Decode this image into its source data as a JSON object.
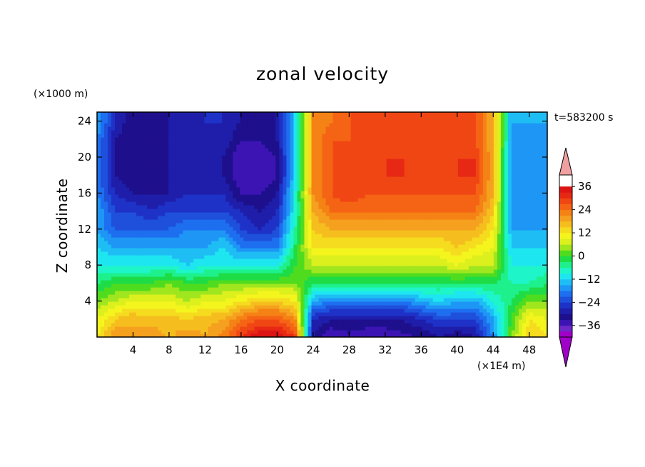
{
  "chart_data": {
    "type": "heatmap",
    "title": "zonal velocity",
    "xlabel": "X coordinate",
    "ylabel": "Z coordinate",
    "x_unit": "(×1E4 m)",
    "y_unit": "(×1000 m)",
    "time_label": "t=583200 s",
    "xlim": [
      0,
      50
    ],
    "ylim": [
      0,
      25
    ],
    "x_ticks": [
      4,
      8,
      12,
      16,
      20,
      24,
      28,
      32,
      36,
      40,
      44,
      48
    ],
    "y_ticks": [
      4,
      8,
      12,
      16,
      20,
      24
    ],
    "x_tick_labels": [
      "4",
      "8",
      "12",
      "16",
      "20",
      "24",
      "28",
      "32",
      "36",
      "40",
      "44",
      "48"
    ],
    "y_tick_labels": [
      "4",
      "8",
      "12",
      "16",
      "20",
      "24"
    ],
    "colorbar": {
      "levels": [
        -42,
        -39,
        -36,
        -33,
        -30,
        -27,
        -24,
        -21,
        -18,
        -15,
        -12,
        -9,
        -6,
        -3,
        0,
        3,
        6,
        9,
        12,
        15,
        18,
        21,
        24,
        27,
        30,
        33,
        36,
        39,
        42
      ],
      "tick_values": [
        -36,
        -24,
        -12,
        0,
        12,
        24,
        36
      ],
      "tick_labels": [
        "−36",
        "−24",
        "−12",
        "0",
        "12",
        "24",
        "36"
      ],
      "colors": [
        "#a000c8",
        "#6e28c8",
        "#3c14b4",
        "#1e0f8c",
        "#1e1eaa",
        "#1e32c8",
        "#1e50dc",
        "#1e6ef0",
        "#1e96f5",
        "#1ebef5",
        "#1ee6f0",
        "#1ef5c8",
        "#1ef08c",
        "#1edc46",
        "#50dc1e",
        "#a0e61e",
        "#dcf01e",
        "#f5f51e",
        "#f5dc1e",
        "#f5be1e",
        "#f5a01e",
        "#f58214",
        "#f56414",
        "#f04614",
        "#e62814",
        "#dc1414"
      ],
      "under_color": "#a000c8",
      "over_color": "#f0a0a0"
    },
    "description_grid": {
      "x": [
        0,
        2,
        4,
        6,
        8,
        10,
        12,
        14,
        16,
        18,
        20,
        22,
        24,
        26,
        28,
        30,
        32,
        34,
        36,
        38,
        40,
        42,
        44,
        46,
        48,
        50
      ],
      "z": [
        0,
        2,
        4,
        6,
        8,
        10,
        12,
        14,
        16,
        18,
        20,
        22,
        24,
        25
      ],
      "u": [
        [
          12,
          21,
          18,
          21,
          17,
          21,
          18,
          22,
          30,
          36,
          36,
          30,
          -30,
          -36,
          -34,
          -36,
          -36,
          -34,
          -33,
          -30,
          -33,
          -30,
          -18,
          3,
          15,
          12
        ],
        [
          9,
          15,
          18,
          16,
          17,
          15,
          17,
          18,
          24,
          27,
          27,
          21,
          -27,
          -30,
          -30,
          -30,
          -30,
          -30,
          -27,
          -24,
          -24,
          -24,
          -15,
          0,
          12,
          9
        ],
        [
          3,
          6,
          9,
          9,
          9,
          6,
          9,
          9,
          12,
          15,
          15,
          12,
          -15,
          -18,
          -18,
          -18,
          -18,
          -18,
          -15,
          -12,
          -15,
          -15,
          -9,
          -3,
          3,
          3
        ],
        [
          -3,
          0,
          0,
          0,
          3,
          0,
          0,
          3,
          3,
          3,
          3,
          3,
          -3,
          -3,
          -3,
          -3,
          -3,
          -3,
          -3,
          -3,
          -3,
          -3,
          -3,
          -6,
          -6,
          -3
        ],
        [
          -9,
          -9,
          -9,
          -9,
          -9,
          -12,
          -9,
          -9,
          -9,
          -9,
          -9,
          0,
          6,
          6,
          6,
          6,
          6,
          6,
          6,
          6,
          9,
          6,
          6,
          -9,
          -9,
          -9
        ],
        [
          -12,
          -15,
          -15,
          -15,
          -15,
          -15,
          -15,
          -12,
          -18,
          -18,
          -18,
          -3,
          12,
          12,
          12,
          12,
          12,
          12,
          12,
          12,
          15,
          12,
          9,
          -12,
          -12,
          -12
        ],
        [
          -15,
          -21,
          -21,
          -21,
          -21,
          -18,
          -18,
          -18,
          -24,
          -27,
          -24,
          -6,
          15,
          18,
          18,
          18,
          18,
          18,
          18,
          18,
          18,
          18,
          12,
          -15,
          -15,
          -15
        ],
        [
          -15,
          -24,
          -24,
          -27,
          -24,
          -24,
          -24,
          -24,
          -27,
          -30,
          -27,
          -9,
          18,
          24,
          24,
          24,
          24,
          24,
          24,
          24,
          24,
          24,
          15,
          -15,
          -18,
          -15
        ],
        [
          -18,
          -27,
          -30,
          -30,
          -30,
          -27,
          -27,
          -27,
          -33,
          -33,
          -30,
          -9,
          21,
          27,
          30,
          27,
          27,
          27,
          27,
          27,
          27,
          27,
          18,
          -18,
          -18,
          -15
        ],
        [
          -18,
          -30,
          -33,
          -33,
          -30,
          -30,
          -30,
          -30,
          -36,
          -36,
          -33,
          -12,
          21,
          27,
          30,
          27,
          30,
          30,
          27,
          27,
          30,
          30,
          18,
          -18,
          -18,
          -15
        ],
        [
          -18,
          -30,
          -33,
          -33,
          -30,
          -30,
          -30,
          -30,
          -36,
          -36,
          -33,
          -12,
          21,
          27,
          30,
          27,
          30,
          30,
          27,
          27,
          30,
          30,
          18,
          -18,
          -18,
          -15
        ],
        [
          -18,
          -30,
          -33,
          -33,
          -30,
          -30,
          -30,
          -27,
          -33,
          -33,
          -30,
          -12,
          21,
          27,
          27,
          27,
          27,
          27,
          27,
          27,
          27,
          27,
          18,
          -15,
          -18,
          -15
        ],
        [
          -15,
          -27,
          -33,
          -33,
          -30,
          -30,
          -27,
          -27,
          -30,
          -33,
          -30,
          -12,
          21,
          24,
          27,
          27,
          27,
          27,
          27,
          27,
          27,
          27,
          18,
          -15,
          -15,
          -15
        ],
        [
          -15,
          -27,
          -33,
          -33,
          -30,
          -30,
          -27,
          -27,
          -30,
          -33,
          -30,
          -12,
          21,
          24,
          27,
          27,
          27,
          27,
          27,
          27,
          27,
          27,
          18,
          -15,
          -15,
          -15
        ]
      ]
    }
  }
}
